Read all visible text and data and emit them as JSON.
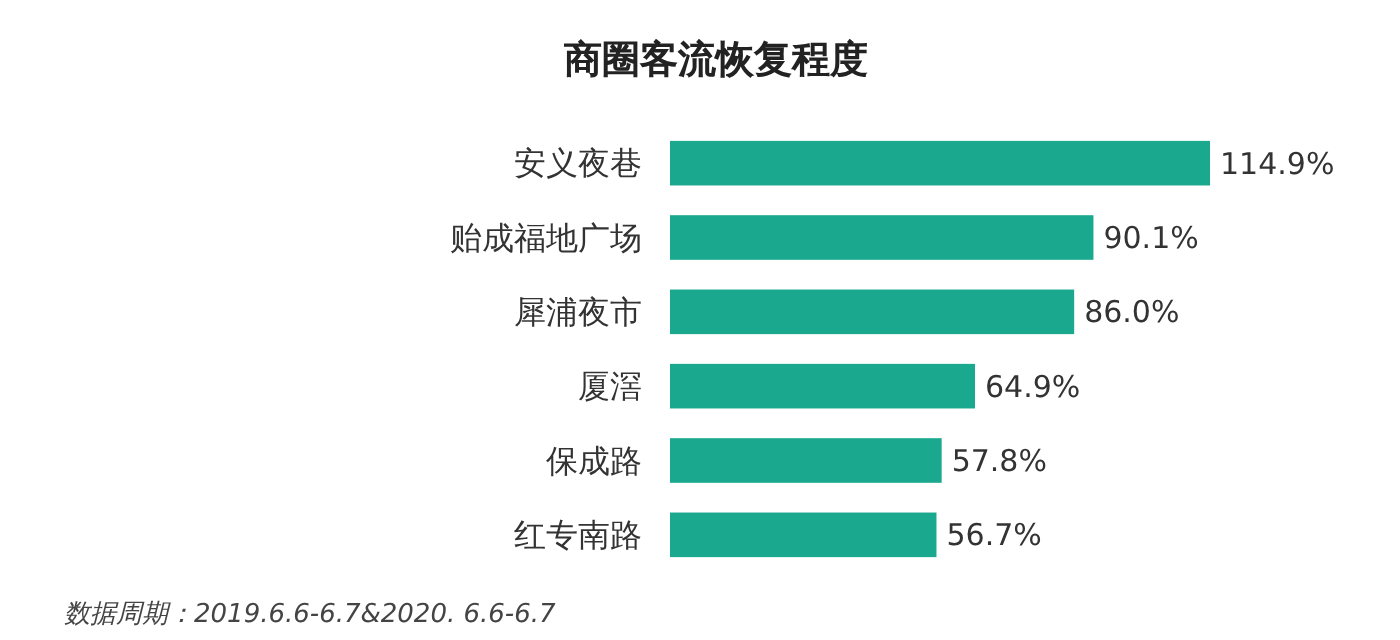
{
  "chart_data": {
    "type": "bar",
    "orientation": "horizontal",
    "title": "商圈客流恢复程度",
    "categories": [
      "安义夜巷",
      "贻成福地广场",
      "犀浦夜市",
      "厦滘",
      "保成路",
      "红专南路"
    ],
    "values": [
      114.9,
      90.1,
      86.0,
      64.9,
      57.8,
      56.7
    ],
    "value_labels": [
      "114.9%",
      "90.1%",
      "86.0%",
      "64.9%",
      "57.8%",
      "56.7%"
    ],
    "color": "#1aa98e",
    "annotations": [
      "数据周期：2019.6.6-6.7&2020. 6.6-6.7"
    ]
  }
}
